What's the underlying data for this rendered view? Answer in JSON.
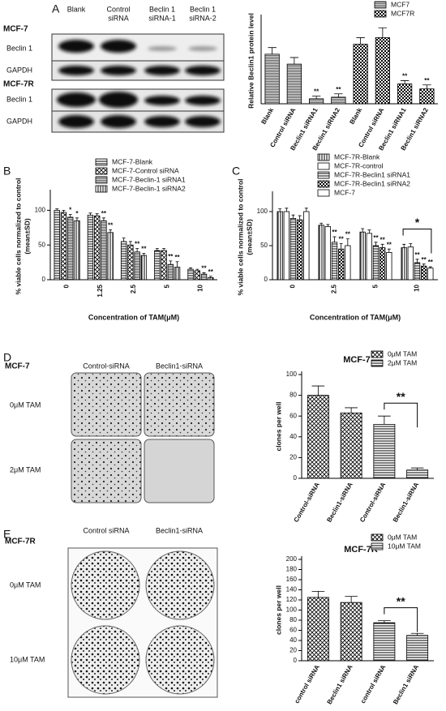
{
  "panel_labels": [
    "A",
    "B",
    "C",
    "D",
    "E"
  ],
  "blots": {
    "A": {
      "columns": [
        [
          "Blank"
        ],
        [
          "Control",
          "siRNA"
        ],
        [
          "Beclin 1",
          "siRNA-1"
        ],
        [
          "Beclin 1",
          "siRNA-2"
        ]
      ],
      "groups": [
        {
          "name": "MCF-7",
          "rows": [
            "Beclin 1",
            "GAPDH"
          ]
        },
        {
          "name": "MCF-7R",
          "rows": [
            "Beclin 1",
            "GAPDH"
          ]
        }
      ]
    },
    "D": {
      "name": "MCF-7",
      "columns": [
        "Control-siRNA",
        "Beclin1-siRNA"
      ],
      "rows": [
        "0μM TAM",
        "2μM TAM"
      ]
    },
    "E": {
      "name": "MCF-7R",
      "columns": [
        "Control siRNA",
        "Beclin1-siRNA"
      ],
      "rows": [
        "0μM TAM",
        "10μM TAM"
      ]
    }
  },
  "chart_data": [
    {
      "type": "bar",
      "ylabel": [
        "Relative Beclin1 protein level"
      ],
      "categories": [
        "Blank",
        "Control siRNA",
        "Beclin1 siRNA1",
        "Beclin1 siRNA2",
        "Blank",
        "Control siRNA",
        "Beclin1 siRNA1",
        "Beclin1 siRNA2"
      ],
      "ylim": [
        0,
        2.6
      ],
      "legend": "top-right",
      "series": [
        {
          "name": "MCF7",
          "color": "#000000",
          "pattern": "dense",
          "values": [
            1.5,
            1.2,
            0.15,
            0.2,
            null,
            null,
            null,
            null
          ],
          "errors": [
            0.2,
            0.2,
            0.08,
            0.1,
            null,
            null,
            null,
            null
          ],
          "significance": [
            null,
            null,
            "**",
            "**",
            null,
            null,
            null,
            null
          ]
        },
        {
          "name": "MCF7R",
          "color": "#000000",
          "pattern": "grid",
          "values": [
            null,
            null,
            null,
            null,
            1.8,
            2.0,
            0.6,
            0.45
          ],
          "errors": [
            null,
            null,
            null,
            null,
            0.2,
            0.3,
            0.1,
            0.12
          ],
          "significance": [
            null,
            null,
            null,
            null,
            null,
            null,
            "**",
            "**"
          ]
        }
      ]
    },
    {
      "type": "bar",
      "xlabel": "Concentration of TAM(μM)",
      "ylabel": [
        "% viable cells normalized to control",
        "(mean±SD)"
      ],
      "categories": [
        "0",
        "1.25",
        "2.5",
        "5",
        "10"
      ],
      "ylim": [
        0,
        125
      ],
      "yticks": [
        0,
        50,
        100
      ],
      "legend": "top-right",
      "series": [
        {
          "name": "MCF-7-Blank",
          "color": "#000000",
          "pattern": "h",
          "values": [
            100,
            93,
            55,
            42,
            15
          ],
          "errors": [
            2,
            3,
            5,
            3,
            2
          ],
          "significance": [
            null,
            null,
            null,
            null,
            null
          ]
        },
        {
          "name": "MCF-7-Control siRNA",
          "color": "#000000",
          "pattern": "x",
          "values": [
            97,
            92,
            50,
            42,
            13
          ],
          "errors": [
            3,
            3,
            5,
            3,
            2
          ],
          "significance": [
            null,
            null,
            null,
            null,
            null
          ]
        },
        {
          "name": "MCF-7-Beclin-1 siRNA1",
          "color": "#000000",
          "pattern": "dense",
          "values": [
            90,
            85,
            40,
            22,
            8
          ],
          "errors": [
            4,
            4,
            5,
            5,
            2
          ],
          "significance": [
            "*",
            "**",
            "**",
            "**",
            "**"
          ]
        },
        {
          "name": "MCF-7-Beclin-1 siRNA2",
          "color": "#000000",
          "pattern": "v",
          "values": [
            85,
            68,
            35,
            18,
            3
          ],
          "errors": [
            4,
            4,
            3,
            8,
            2
          ],
          "significance": [
            "*",
            "**",
            "**",
            "**",
            "**"
          ]
        }
      ]
    },
    {
      "type": "bar",
      "xlabel": "Concentration of TAM(μM)",
      "ylabel": [
        "% viable cells normalized to control",
        "(mean±SD)"
      ],
      "categories": [
        "0",
        "2.5",
        "5",
        "10"
      ],
      "ylim": [
        0,
        125
      ],
      "yticks": [
        0,
        50,
        100
      ],
      "legend": "top-right",
      "annotations": [
        "*"
      ],
      "series": [
        {
          "name": "MCF-7R-Blank",
          "color": "#000000",
          "pattern": "v",
          "values": [
            100,
            80,
            70,
            47
          ],
          "errors": [
            4,
            3,
            5,
            5
          ],
          "significance": [
            null,
            null,
            null,
            null
          ]
        },
        {
          "name": "MCF-7R-control",
          "color": "#000000",
          "pattern": "w",
          "values": [
            100,
            78,
            68,
            48
          ],
          "errors": [
            5,
            3,
            5,
            5
          ],
          "significance": [
            null,
            null,
            null,
            null
          ]
        },
        {
          "name": "MCF-7R-Beclin1 siRNA1",
          "color": "#000000",
          "pattern": "h",
          "values": [
            90,
            55,
            50,
            25
          ],
          "errors": [
            5,
            8,
            5,
            5
          ],
          "significance": [
            null,
            "**",
            "**",
            "**"
          ]
        },
        {
          "name": "MCF-7R-Beclin1 siRNA2",
          "color": "#000000",
          "pattern": "grid",
          "values": [
            88,
            45,
            47,
            20
          ],
          "errors": [
            6,
            8,
            5,
            3
          ],
          "significance": [
            null,
            "**",
            "**",
            "**"
          ]
        },
        {
          "name": "MCF-7",
          "color": "#000000",
          "pattern": "w",
          "values": [
            100,
            50,
            40,
            17
          ],
          "errors": [
            5,
            10,
            5,
            2
          ],
          "significance": [
            null,
            "**",
            "**",
            "**"
          ]
        }
      ]
    },
    {
      "type": "bar",
      "title": "MCF-7",
      "ylabel": [
        "clones per well"
      ],
      "categories": [
        "Control-siRNA",
        "Beclin1-siRNA",
        "Control-siRNA",
        "Beclin1-siRNA"
      ],
      "ylim": [
        0,
        100
      ],
      "yticks": [
        0,
        20,
        40,
        60,
        80,
        100
      ],
      "legend": "top-right",
      "annotations": [
        "**"
      ],
      "series": [
        {
          "name": "0μM TAM",
          "color": "#000000",
          "pattern": "x",
          "values": [
            80,
            63,
            null,
            null
          ],
          "errors": [
            9,
            5,
            null,
            null
          ],
          "significance": [
            null,
            null,
            null,
            null
          ]
        },
        {
          "name": "2μM TAM",
          "color": "#000000",
          "pattern": "h",
          "values": [
            null,
            null,
            52,
            8
          ],
          "errors": [
            null,
            null,
            8,
            2
          ],
          "significance": [
            null,
            null,
            null,
            null
          ]
        }
      ]
    },
    {
      "type": "bar",
      "title": "MCF-7R",
      "ylabel": [
        "clones per well"
      ],
      "categories": [
        "control siRNA",
        "Beclin1 siRNA",
        "control siRNA",
        "Beclin1 siRNA"
      ],
      "ylim": [
        0,
        200
      ],
      "yticks": [
        0,
        20,
        40,
        60,
        80,
        100,
        120,
        140,
        160,
        180,
        200
      ],
      "legend": "top-right",
      "annotations": [
        "**"
      ],
      "series": [
        {
          "name": "0μM TAM",
          "color": "#000000",
          "pattern": "x",
          "values": [
            125,
            115,
            null,
            null
          ],
          "errors": [
            12,
            12,
            null,
            null
          ],
          "significance": [
            null,
            null,
            null,
            null
          ]
        },
        {
          "name": "10μM TAM",
          "color": "#000000",
          "pattern": "h",
          "values": [
            null,
            null,
            75,
            50
          ],
          "errors": [
            null,
            null,
            4,
            4
          ],
          "significance": [
            null,
            null,
            null,
            null
          ]
        }
      ]
    }
  ]
}
